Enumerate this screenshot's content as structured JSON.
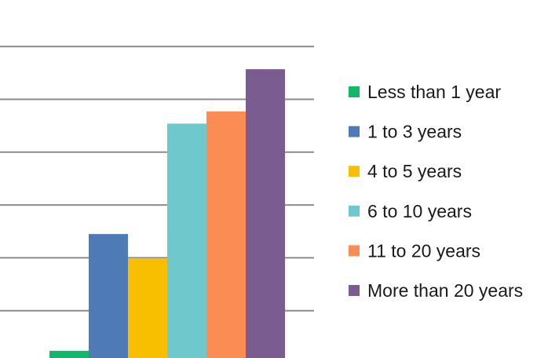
{
  "chart_data": {
    "type": "bar",
    "title": "",
    "xlabel": "",
    "ylabel": "",
    "grid": true,
    "legend_position": "right",
    "series": [
      {
        "name": "Less than 1 year",
        "value": 0.24,
        "color": "#12B76A"
      },
      {
        "name": "1 to 3 years",
        "value": 2.45,
        "color": "#4E7AB5"
      },
      {
        "name": "4 to 5 years",
        "value": 1.98,
        "color": "#F8BE00"
      },
      {
        "name": "6 to 10 years",
        "value": 4.54,
        "color": "#6FC8CC"
      },
      {
        "name": "11 to 20 years",
        "value": 4.77,
        "color": "#FB8C54"
      },
      {
        "name": "More than 20 years",
        "value": 5.57,
        "color": "#7A5C91"
      }
    ],
    "ylim": [
      0,
      6
    ]
  }
}
